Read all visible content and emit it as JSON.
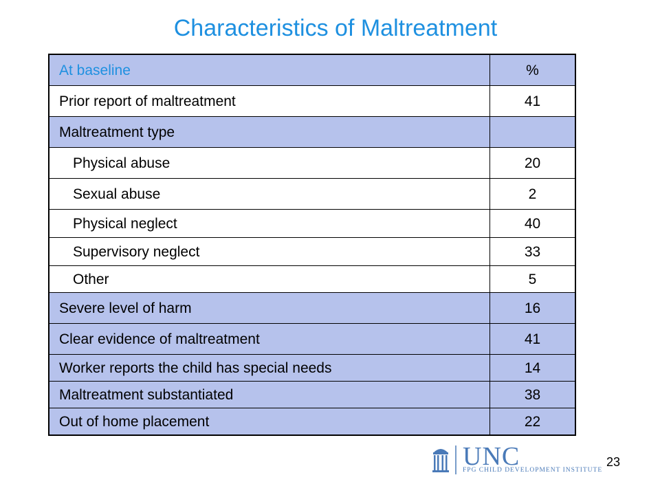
{
  "title": "Characteristics of Maltreatment",
  "table": {
    "header": {
      "label": "At baseline",
      "value": "%"
    },
    "rows": [
      {
        "label": "Prior report of maltreatment",
        "value": "41"
      },
      {
        "label": "Maltreatment type",
        "value": ""
      },
      {
        "label": "Physical abuse",
        "value": "20"
      },
      {
        "label": "Sexual abuse",
        "value": "2"
      },
      {
        "label": "Physical neglect",
        "value": "40"
      },
      {
        "label": "Supervisory neglect",
        "value": "33"
      },
      {
        "label": "Other",
        "value": "5"
      },
      {
        "label": "Severe level of harm",
        "value": "16"
      },
      {
        "label": "Clear evidence of maltreatment",
        "value": "41"
      },
      {
        "label": "Worker reports the child has special needs",
        "value": "14"
      },
      {
        "label": "Maltreatment substantiated",
        "value": "38"
      },
      {
        "label": "Out of home placement",
        "value": "22"
      }
    ]
  },
  "logo": {
    "name": "UNC",
    "subtitle": "FPG CHILD DEVELOPMENT INSTITUTE",
    "icon": "old-well-icon"
  },
  "page_number": "23",
  "colors": {
    "title": "#1E90E0",
    "shaded_row": "#B6C2EC",
    "logo": "#4A7AB8"
  }
}
